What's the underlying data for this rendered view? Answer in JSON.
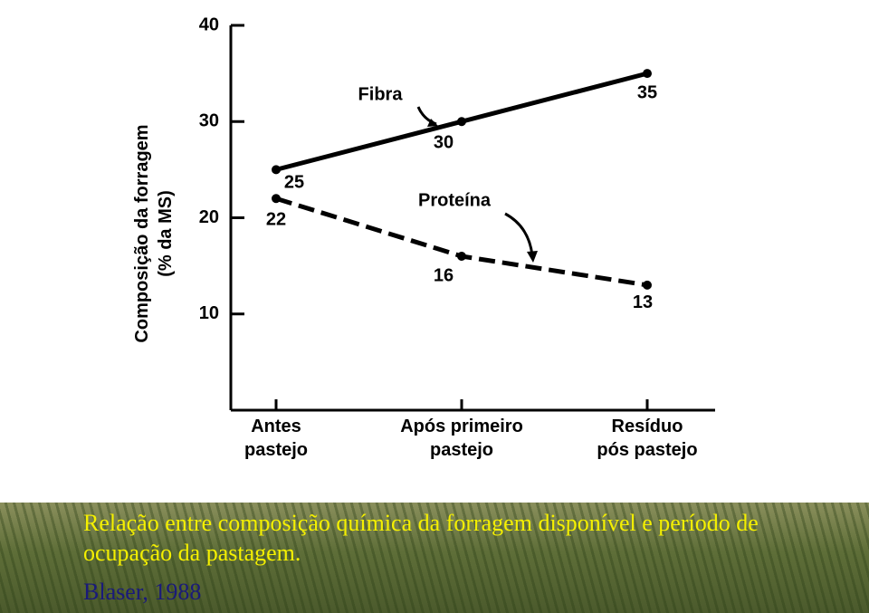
{
  "chart_data": {
    "type": "line",
    "ylabel": [
      "Composição da forragem",
      "(% da MS)"
    ],
    "categories": [
      "Antes\npastejo",
      "Após primeiro\npastejo",
      "Resíduo\npós pastejo"
    ],
    "series": [
      {
        "name": "Fibra",
        "color": "#000000",
        "dash": false,
        "values": [
          25,
          30,
          35
        ]
      },
      {
        "name": "Proteína",
        "color": "#000000",
        "dash": true,
        "values": [
          22,
          16,
          13
        ]
      }
    ],
    "ylim": [
      0,
      40
    ],
    "yticks": [
      10,
      20,
      30,
      40
    ],
    "grid": false,
    "caption": "Relação entre composição química da forragem disponível e período de ocupação da pastagem.",
    "source": "Blaser, 1988"
  }
}
